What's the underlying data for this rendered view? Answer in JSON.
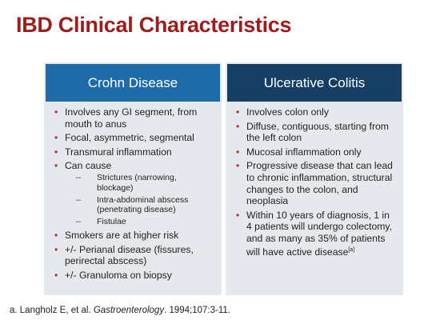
{
  "title": "IBD Clinical Characteristics",
  "left": {
    "header": "Crohn Disease",
    "items": [
      "Involves any GI segment, from mouth to anus",
      "Focal, asymmetric, segmental",
      "Transmural inflammation",
      "Can cause",
      "Smokers are at higher risk",
      "+/- Perianal disease (fissures, perirectal abscess)",
      "+/- Granuloma on biopsy"
    ],
    "sub_items": [
      "Strictures (narrowing, blockage)",
      "Intra-abdominal abscess (penetrating disease)",
      "Fistulae"
    ]
  },
  "right": {
    "header": "Ulcerative Colitis",
    "items": [
      "Involves colon only",
      "Diffuse, contiguous, starting from the left colon",
      "Mucosal inflammation only",
      "Progressive disease that can lead to chronic inflammation, structural changes to the colon, and neoplasia",
      "Within 10 years of diagnosis, 1 in 4 patients will undergo colectomy, and as many as 35% of patients will have active disease"
    ],
    "last_item_ref": "[a]"
  },
  "footnote": {
    "prefix": "a. Langholz E, et al. ",
    "journal": "Gastroenterology",
    "suffix": ". 1994;107:3-11."
  }
}
